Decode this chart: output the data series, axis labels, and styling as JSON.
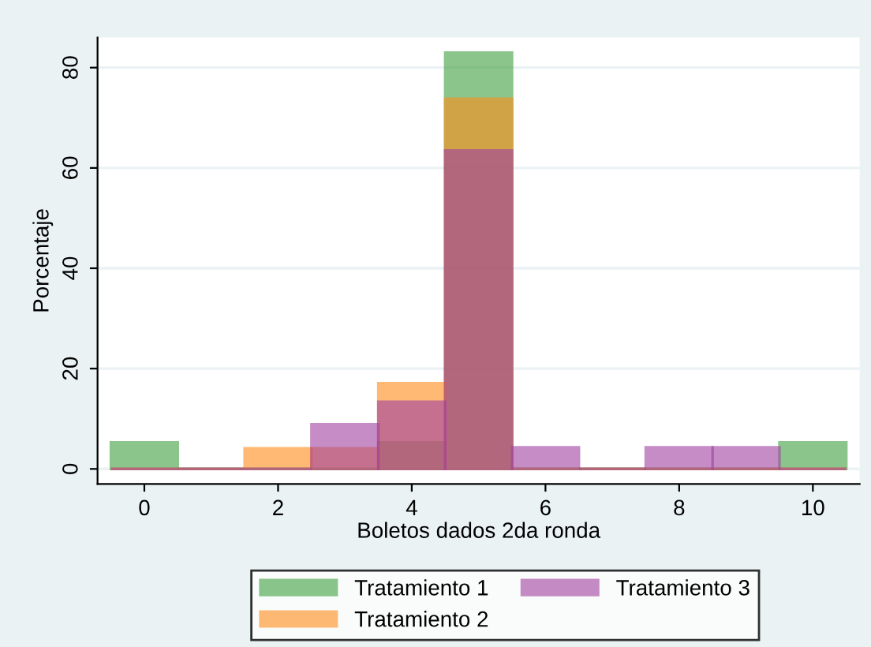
{
  "chart_data": {
    "type": "histogram",
    "xlabel": "Boletos dados 2da ronda",
    "ylabel": "Porcentaje",
    "bins": [
      -0.5,
      0.5,
      1.5,
      2.5,
      3.5,
      4.5,
      5.5,
      6.5,
      7.5,
      8.5,
      9.5,
      10.5
    ],
    "series": [
      {
        "name": "Tratamiento 1",
        "color": "#3f9f3f",
        "values": [
          5.3,
          0,
          0,
          0,
          5.3,
          83,
          0,
          0,
          0,
          0,
          5.3
        ]
      },
      {
        "name": "Tratamiento 2",
        "color": "#ff8c1a",
        "values": [
          0,
          0,
          4.1,
          4.1,
          17.1,
          73.8,
          0,
          0,
          0,
          0,
          0
        ]
      },
      {
        "name": "Tratamiento 3",
        "color": "#a040a0",
        "values": [
          0,
          0,
          0,
          8.9,
          13.4,
          63.5,
          4.3,
          0,
          4.3,
          4.3,
          0
        ]
      }
    ],
    "xlim": [
      -0.7,
      10.7
    ],
    "ylim": [
      -3,
      86
    ],
    "xticks": [
      0,
      2,
      4,
      6,
      8,
      10
    ],
    "yticks": [
      0,
      20,
      40,
      60,
      80
    ],
    "grid": "y",
    "legend": "bottom"
  }
}
